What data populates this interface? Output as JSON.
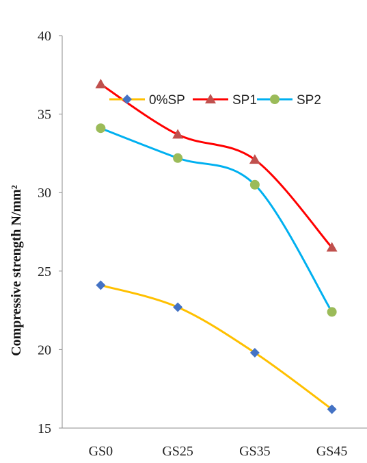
{
  "chart_data": {
    "type": "line",
    "title": "",
    "xlabel": "",
    "ylabel": "Compressive strength N/mm²",
    "categories": [
      "GS0",
      "GS25",
      "GS35",
      "GS45"
    ],
    "ylim": [
      15,
      40
    ],
    "yticks": [
      15,
      20,
      25,
      30,
      35,
      40
    ],
    "grid": false,
    "smooth": true,
    "legend_position": "top-right",
    "series": [
      {
        "name": "0%SP",
        "values": [
          24.1,
          22.7,
          19.8,
          16.2
        ],
        "color": "#FFC000",
        "marker": "diamond",
        "marker_color": "#4472C4"
      },
      {
        "name": "SP1",
        "values": [
          36.9,
          33.7,
          32.1,
          26.5
        ],
        "color": "#FF0000",
        "marker": "triangle",
        "marker_color": "#C0504D"
      },
      {
        "name": "SP2",
        "values": [
          34.1,
          32.2,
          30.5,
          22.4
        ],
        "color": "#00B0F0",
        "marker": "circle",
        "marker_color": "#9BBB59"
      }
    ]
  }
}
